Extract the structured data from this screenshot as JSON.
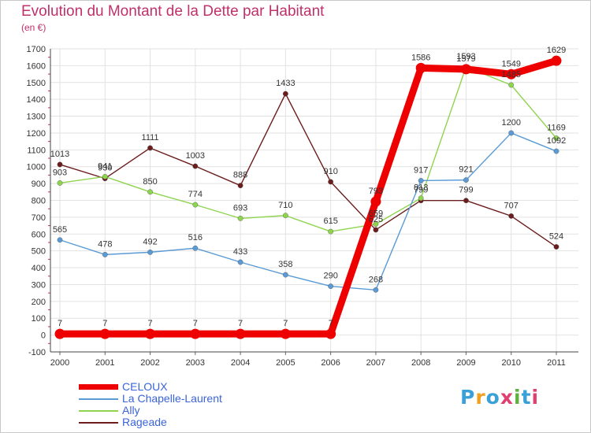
{
  "title": "Evolution du Montant de la Dette par Habitant",
  "subtitle": "(en €)",
  "logo": {
    "text": "Proxiti",
    "colors": [
      "#3aa0d8",
      "#f0a020",
      "#3aa0d8",
      "#e04070",
      "#60b040",
      "#3aa0d8",
      "#e04070"
    ]
  },
  "chart_data": {
    "type": "line",
    "x": [
      "2000",
      "2001",
      "2002",
      "2003",
      "2004",
      "2005",
      "2006",
      "2007",
      "2008",
      "2009",
      "2010",
      "2011"
    ],
    "ylim": [
      -100,
      1700
    ],
    "yticks": [
      -100,
      0,
      100,
      200,
      300,
      400,
      500,
      600,
      700,
      800,
      900,
      1000,
      1100,
      1200,
      1300,
      1400,
      1500,
      1600,
      1700
    ],
    "grid": true,
    "legend_position": "bottom-left",
    "series": [
      {
        "name": "CELOUX",
        "color": "#ee0000",
        "thick": true,
        "values": [
          7,
          7,
          7,
          7,
          7,
          7,
          7,
          793,
          1586,
          1579,
          1549,
          1629
        ],
        "labels": [
          "7",
          "7",
          "7",
          "7",
          "7",
          "7",
          "7",
          "793",
          "1586",
          "1579",
          "1549",
          "1629"
        ]
      },
      {
        "name": "La Chapelle-Laurent",
        "color": "#5b9bd5",
        "thick": false,
        "values": [
          565,
          478,
          492,
          516,
          433,
          358,
          290,
          268,
          917,
          921,
          1200,
          1092
        ],
        "labels": [
          "565",
          "478",
          "492",
          "516",
          "433",
          "358",
          "290",
          "268",
          "917",
          "921",
          "1200",
          "1092"
        ]
      },
      {
        "name": "Ally",
        "color": "#8fd44f",
        "thick": false,
        "values": [
          903,
          941,
          850,
          774,
          693,
          710,
          615,
          659,
          813,
          1593,
          1485,
          1169
        ],
        "labels": [
          "903",
          "941",
          "850",
          "774",
          "693",
          "710",
          "615",
          "659",
          "813",
          "1593",
          "1485",
          "1169"
        ]
      },
      {
        "name": "Rageade",
        "color": "#6b1c1c",
        "thick": false,
        "values": [
          1013,
          930,
          1111,
          1003,
          888,
          1433,
          910,
          625,
          799,
          799,
          707,
          524
        ],
        "labels": [
          "1013",
          "930",
          "1111",
          "1003",
          "888",
          "1433",
          "910",
          "625",
          "799",
          "799",
          "707",
          "524"
        ]
      }
    ]
  }
}
